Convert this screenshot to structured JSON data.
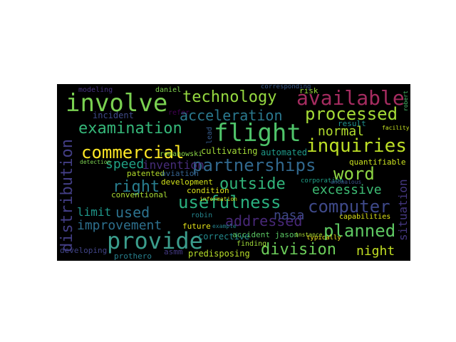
{
  "word_cloud": {
    "background": "#000000",
    "words": [
      {
        "text": "flight",
        "color": "#4fc46a"
      },
      {
        "text": "involve",
        "color": "#7ad151"
      },
      {
        "text": "provide",
        "color": "#3b9d8c"
      },
      {
        "text": "technology",
        "color": "#95d840"
      },
      {
        "text": "available",
        "color": "#a52c60"
      },
      {
        "text": "processed",
        "color": "#a5db36"
      },
      {
        "text": "examination",
        "color": "#35b779"
      },
      {
        "text": "commercial",
        "color": "#fde725"
      },
      {
        "text": "acceleration",
        "color": "#2a788e"
      },
      {
        "text": "inquiries",
        "color": "#bddf26"
      },
      {
        "text": "normal",
        "color": "#b2dd2d"
      },
      {
        "text": "partnerships",
        "color": "#31688e"
      },
      {
        "text": "usefulness",
        "color": "#2ab07f"
      },
      {
        "text": "distribution",
        "color": "#433e85"
      },
      {
        "text": "word",
        "color": "#8fd744"
      },
      {
        "text": "right",
        "color": "#287d8e"
      },
      {
        "text": "outside",
        "color": "#31b57b"
      },
      {
        "text": "computer",
        "color": "#3e4989"
      },
      {
        "text": "excessive",
        "color": "#3dbc74"
      },
      {
        "text": "addressed",
        "color": "#482878"
      },
      {
        "text": "planned",
        "color": "#5ec962"
      },
      {
        "text": "division",
        "color": "#6ccd5a"
      },
      {
        "text": "speed",
        "color": "#20a386"
      },
      {
        "text": "invention",
        "color": "#472d7b"
      },
      {
        "text": "used",
        "color": "#2c728e"
      },
      {
        "text": "limit",
        "color": "#1f988b"
      },
      {
        "text": "improvement",
        "color": "#2d708e"
      },
      {
        "text": "nasa",
        "color": "#3f4889"
      },
      {
        "text": "situation",
        "color": "#453781"
      },
      {
        "text": "night",
        "color": "#c2df23"
      },
      {
        "text": "incident",
        "color": "#3e4a89"
      },
      {
        "text": "cultivating",
        "color": "#a2da37"
      },
      {
        "text": "automated",
        "color": "#1f9a8a"
      },
      {
        "text": "modeling",
        "color": "#46327e"
      },
      {
        "text": "development",
        "color": "#d2e21b"
      },
      {
        "text": "corrective",
        "color": "#238a8d"
      },
      {
        "text": "conventional",
        "color": "#a8db34"
      },
      {
        "text": "patented",
        "color": "#b5de2b"
      },
      {
        "text": "aviation",
        "color": "#34618d"
      },
      {
        "text": "condition",
        "color": "#d8e219"
      },
      {
        "text": "future",
        "color": "#e5e419"
      },
      {
        "text": "quantifiable",
        "color": "#cae11f"
      },
      {
        "text": "capabilities",
        "color": "#dde318"
      },
      {
        "text": "accident",
        "color": "#5cc863"
      },
      {
        "text": "jason",
        "color": "#5ac864"
      },
      {
        "text": "predisposing",
        "color": "#b8de29"
      },
      {
        "text": "developing",
        "color": "#414487"
      },
      {
        "text": "prothero",
        "color": "#27808e"
      },
      {
        "text": "asmm",
        "color": "#443983"
      },
      {
        "text": "finding",
        "color": "#a0da39"
      },
      {
        "text": "risk",
        "color": "#9bd93c"
      },
      {
        "text": "result",
        "color": "#21918c"
      },
      {
        "text": "daniel",
        "color": "#7fd34e"
      },
      {
        "text": "refer",
        "color": "#440154"
      },
      {
        "text": "romanowski",
        "color": "#8bd646"
      },
      {
        "text": "robin",
        "color": "#25858e"
      },
      {
        "text": "lead",
        "color": "#365c8d"
      },
      {
        "text": "typically",
        "color": "#f1e51d"
      },
      {
        "text": "corporation",
        "color": "#1fa188"
      },
      {
        "text": "corresponding",
        "color": "#38598c"
      },
      {
        "text": "example",
        "color": "#26828e"
      },
      {
        "text": "information",
        "color": "#d0e11c"
      },
      {
        "text": "facility",
        "color": "#c5e021"
      },
      {
        "text": "detection",
        "color": "#7cd250"
      },
      {
        "text": "instance",
        "color": "#aadc32"
      },
      {
        "text": "robert",
        "color": "#4ac16d"
      },
      {
        "text": "anomalous",
        "color": "#3a548c"
      }
    ]
  }
}
